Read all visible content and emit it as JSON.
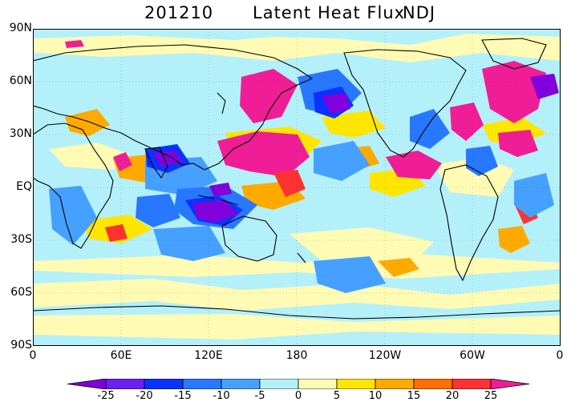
{
  "title": {
    "date": "201210",
    "variable": "Latent Heat Flux",
    "season": "NDJ"
  },
  "map": {
    "projection": "equirectangular global, 0 to 360 longitude",
    "lat_labels": [
      "90N",
      "60N",
      "30N",
      "EQ",
      "30S",
      "60S",
      "90S"
    ],
    "lon_labels": [
      "0",
      "60E",
      "120E",
      "180",
      "120W",
      "60W",
      "0"
    ],
    "gridlines": true
  },
  "colorbar": {
    "ticks": [
      "-25",
      "-20",
      "-15",
      "-10",
      "-5",
      "0",
      "5",
      "10",
      "15",
      "20",
      "25"
    ],
    "colors": [
      "#8200dc",
      "#6d1ef0",
      "#0a32ff",
      "#2878ff",
      "#46a0ff",
      "#b4f0fa",
      "#fffab4",
      "#ffe600",
      "#ffaa00",
      "#ff6e00",
      "#ff3232",
      "#f01e96"
    ]
  }
}
